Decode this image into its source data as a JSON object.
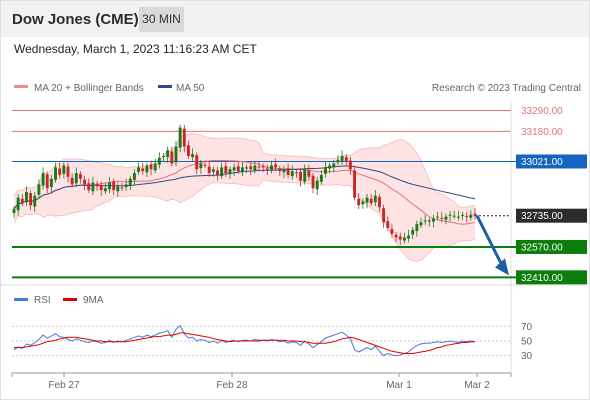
{
  "instrument": "Dow Jones (CME)",
  "timeframe": "30 MIN",
  "timestamp": "Wednesday, March 1, 2023 11:16:23 AM CET",
  "legend": {
    "bb_label": "MA 20 + Bollinger Bands",
    "ma50_label": "MA 50",
    "credit": "Research © 2023 Trading Central"
  },
  "colors": {
    "up": "#1a7a1a",
    "down": "#c62828",
    "bb_fill": "#fde3e3",
    "bb_line": "#f08a8a",
    "ma20": "#e57373",
    "ma50": "#2e4a8e",
    "resistance": "#e57373",
    "pivot": "#1565c0",
    "support": "#0a7d0a",
    "rsi": "#4a78d6",
    "rsi_ma": "#e00000",
    "arrow": "#1f5fa8"
  },
  "chart_data": [
    {
      "type": "candlestick",
      "title": "Dow Jones (CME) 30 MIN",
      "ylim": [
        32380,
        33340
      ],
      "x_ticks": [
        "Feb 27",
        "Feb 28",
        "Mar 1",
        "Mar 2"
      ],
      "bars": 112,
      "closes": [
        32770,
        32830,
        32800,
        32860,
        32790,
        32840,
        32900,
        32960,
        32880,
        32930,
        32990,
        32950,
        33000,
        32940,
        32900,
        32960,
        32930,
        32900,
        32870,
        32910,
        32890,
        32870,
        32880,
        32910,
        32870,
        32890,
        32880,
        32900,
        32930,
        32960,
        32990,
        32970,
        33000,
        32980,
        33010,
        33040,
        33050,
        33080,
        33010,
        33100,
        33200,
        33100,
        33050,
        33060,
        32980,
        33010,
        33000,
        32960,
        32980,
        32950,
        32990,
        32960,
        32980,
        32990,
        32970,
        32990,
        32990,
        32980,
        33000,
        32990,
        32990,
        32980,
        33000,
        32990,
        32970,
        32980,
        32950,
        32970,
        32960,
        32920,
        32980,
        32940,
        32880,
        32920,
        32950,
        32990,
        33000,
        33010,
        33030,
        33050,
        33020,
        32980,
        32830,
        32790,
        32810,
        32830,
        32800,
        32840,
        32780,
        32700,
        32670,
        32640,
        32620,
        32610,
        32620,
        32630,
        32660,
        32690,
        32700,
        32710,
        32710,
        32720,
        32730,
        32720,
        32730,
        32740,
        32735,
        32730,
        32740,
        32730,
        32740,
        32735
      ],
      "levels": [
        {
          "label": "33290.00",
          "value": 33290,
          "kind": "resistance"
        },
        {
          "label": "33180.00",
          "value": 33180,
          "kind": "resistance"
        },
        {
          "label": "33021.00",
          "value": 33021,
          "kind": "pivot"
        },
        {
          "label": "32735.00",
          "value": 32735,
          "kind": "last"
        },
        {
          "label": "32570.00",
          "value": 32570,
          "kind": "support"
        },
        {
          "label": "32410.00",
          "value": 32410,
          "kind": "support"
        }
      ],
      "forecast_target": 32410
    },
    {
      "type": "line",
      "title": "RSI",
      "series": [
        {
          "name": "RSI",
          "values": [
            38,
            42,
            40,
            46,
            44,
            48,
            52,
            58,
            54,
            57,
            60,
            56,
            55,
            52,
            50,
            53,
            51,
            49,
            48,
            50,
            49,
            47,
            48,
            51,
            48,
            50,
            49,
            51,
            53,
            55,
            57,
            55,
            58,
            56,
            58,
            61,
            62,
            64,
            55,
            66,
            71,
            60,
            54,
            55,
            50,
            52,
            51,
            48,
            50,
            47,
            51,
            48,
            50,
            51,
            49,
            51,
            51,
            50,
            52,
            51,
            51,
            50,
            52,
            51,
            49,
            50,
            47,
            49,
            48,
            44,
            50,
            46,
            41,
            45,
            49,
            54,
            56,
            58,
            60,
            62,
            58,
            53,
            38,
            35,
            38,
            41,
            38,
            43,
            36,
            30,
            33,
            31,
            30,
            31,
            33,
            35,
            40,
            44,
            46,
            47,
            47,
            48,
            49,
            48,
            49,
            50,
            49,
            48,
            50,
            49,
            50,
            49
          ]
        },
        {
          "name": "9MA",
          "values": [
            41,
            41,
            41,
            42,
            43,
            44,
            45,
            47,
            49,
            50,
            51,
            53,
            54,
            55,
            55,
            55,
            54,
            53,
            52,
            51,
            50,
            50,
            49,
            49,
            49,
            49,
            49,
            49,
            50,
            51,
            52,
            53,
            54,
            55,
            56,
            56,
            57,
            58,
            58,
            59,
            61,
            61,
            60,
            59,
            58,
            57,
            56,
            55,
            53,
            52,
            51,
            50,
            49,
            50,
            50,
            50,
            50,
            50,
            50,
            50,
            51,
            51,
            51,
            51,
            51,
            51,
            50,
            50,
            50,
            49,
            49,
            48,
            47,
            47,
            47,
            47,
            48,
            49,
            51,
            53,
            54,
            55,
            54,
            52,
            50,
            48,
            46,
            44,
            42,
            40,
            38,
            36,
            35,
            34,
            33,
            33,
            33,
            34,
            35,
            36,
            37,
            39,
            41,
            42,
            44,
            45,
            46,
            47,
            48,
            48,
            49,
            49
          ]
        }
      ],
      "ylim": [
        20,
        80
      ],
      "y_ticks": [
        "70",
        "50",
        "30"
      ]
    }
  ]
}
